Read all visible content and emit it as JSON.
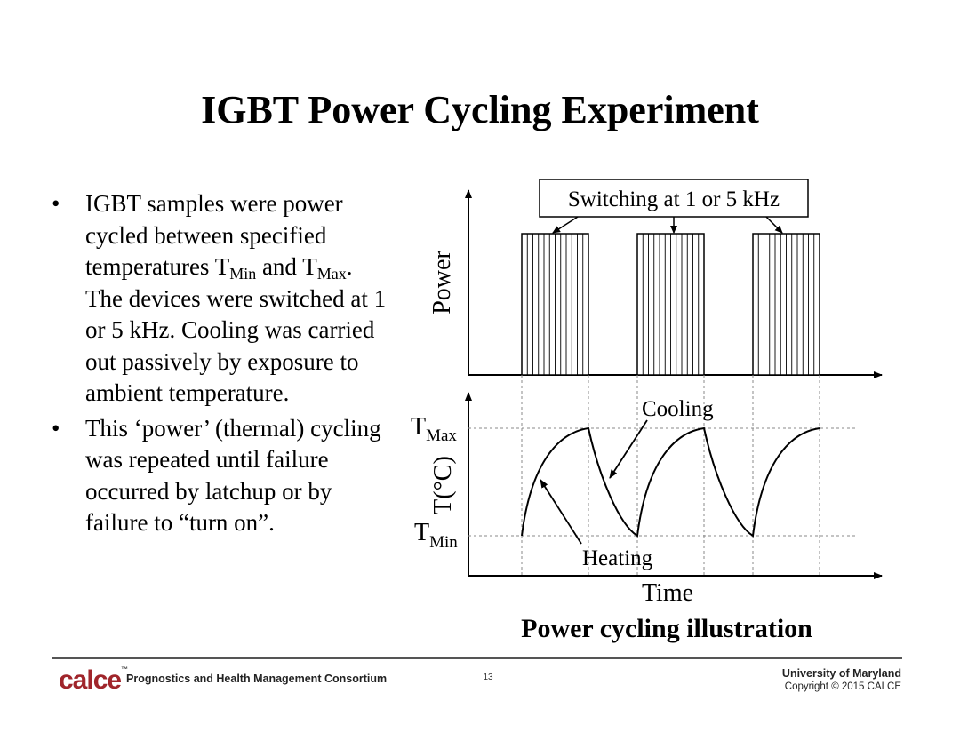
{
  "slide": {
    "title": "IGBT Power Cycling Experiment"
  },
  "bullets": [
    {
      "pre": "IGBT samples were power cycled between specified temperatures T",
      "sub1": "Min",
      "mid": " and T",
      "sub2": "Max",
      "post": ". The devices were switched at 1 or 5 kHz. Cooling was carried out passively by exposure to ambient temperature."
    },
    {
      "text": "This ‘power’ (thermal) cycling was repeated until failure occurred by latchup or by failure to “turn on”."
    }
  ],
  "diagram": {
    "switching_label": "Switching at 1 or 5 kHz",
    "power_axis_label": "Power",
    "temp_axis_label": "T(°C)",
    "tmax_label": "T",
    "tmax_sub": "Max",
    "tmin_label": "T",
    "tmin_sub": "Min",
    "cooling_label": "Cooling",
    "heating_label": "Heating",
    "time_label": "Time",
    "caption": "Power cycling illustration",
    "cycles": 3,
    "line_color": "#000000",
    "dash_color": "#888888"
  },
  "footer": {
    "logo_text": "calce",
    "logo_tm": "™",
    "consortium": "Prognostics and Health Management Consortium",
    "page_number": "13",
    "university": "University of Maryland",
    "copyright": "Copyright © 2015 CALCE",
    "logo_color": "#a0252b"
  }
}
